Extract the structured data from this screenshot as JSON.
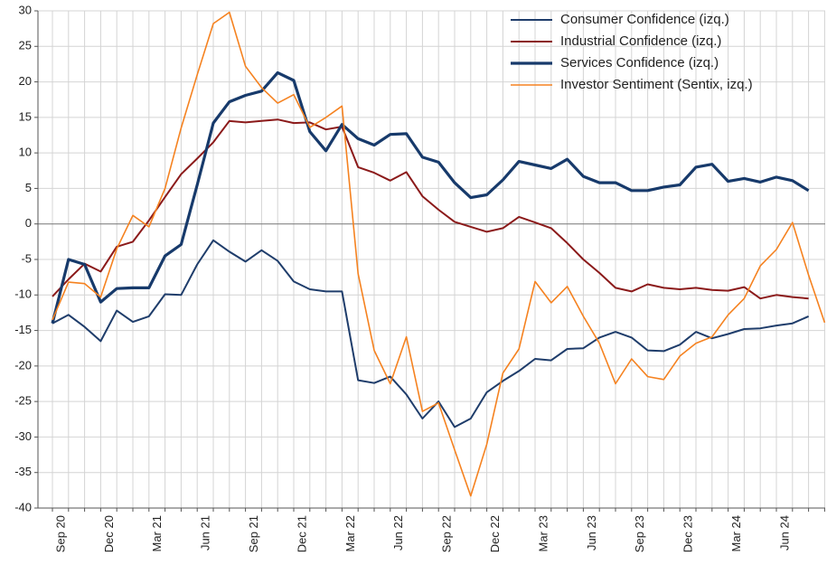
{
  "chart_data": {
    "type": "line",
    "categories": [
      "Sep 20",
      null,
      null,
      "Dec 20",
      null,
      null,
      "Mar 21",
      null,
      null,
      "Jun 21",
      null,
      null,
      "Sep 21",
      null,
      null,
      "Dec 21",
      null,
      null,
      "Mar 22",
      null,
      null,
      "Jun 22",
      null,
      null,
      "Sep 22",
      null,
      null,
      "Dec 22",
      null,
      null,
      "Mar 23",
      null,
      null,
      "Jun 23",
      null,
      null,
      "Sep 23",
      null,
      null,
      "Dec 23",
      null,
      null,
      "Mar 24",
      null,
      null,
      "Jun 24",
      null,
      null,
      null
    ],
    "series": [
      {
        "name": "Consumer Confidence (izq.)",
        "color": "#1f3d6b",
        "width": 2,
        "values": [
          -14,
          -12.8,
          -14.5,
          -16.5,
          -12.2,
          -13.8,
          -13,
          -9.9,
          -10,
          -5.7,
          -2.3,
          -3.9,
          -5.3,
          -3.7,
          -5.2,
          -8.1,
          -9.2,
          -9.5,
          -9.5,
          -22,
          -22.4,
          -21.5,
          -24,
          -27.4,
          -25,
          -28.6,
          -27.4,
          -23.7,
          -22.1,
          -20.7,
          -19,
          -19.2,
          -17.6,
          -17.5,
          -16,
          -15.2,
          -16,
          -17.8,
          -17.9,
          -17,
          -15.2,
          -16.1,
          -15.5,
          -14.8,
          -14.7,
          -14.3,
          -14,
          -13,
          null
        ]
      },
      {
        "name": "Industrial Confidence (izq.)",
        "color": "#8b1a1a",
        "width": 2,
        "values": [
          -10.2,
          -7.8,
          -5.6,
          -6.7,
          -3.2,
          -2.5,
          0.5,
          3.8,
          7,
          9.2,
          11.5,
          14.5,
          14.3,
          14.5,
          14.7,
          14.2,
          14.3,
          13.3,
          13.7,
          8,
          7.2,
          6.1,
          7.3,
          3.9,
          2,
          0.3,
          -0.4,
          -1.1,
          -0.6,
          1,
          0.2,
          -0.6,
          -2.7,
          -5,
          -6.9,
          -9,
          -9.5,
          -8.5,
          -9,
          -9.2,
          -9,
          -9.3,
          -9.4,
          -8.9,
          -10.5,
          -10,
          -10.3,
          -10.5,
          null
        ]
      },
      {
        "name": "Services Confidence (izq.)",
        "color": "#173a6b",
        "width": 3.2,
        "values": [
          -14,
          -5,
          -5.7,
          -11,
          -9.1,
          -9,
          -9,
          -4.5,
          -2.9,
          5.5,
          14.2,
          17.2,
          18.1,
          18.7,
          21.3,
          20.2,
          13,
          10.3,
          14,
          12,
          11.1,
          12.6,
          12.7,
          9.4,
          8.7,
          5.8,
          3.7,
          4.1,
          6.2,
          8.8,
          8.3,
          7.8,
          9.1,
          6.7,
          5.8,
          5.8,
          4.7,
          4.7,
          5.2,
          5.5,
          8,
          8.4,
          6,
          6.4,
          5.9,
          6.6,
          6.1,
          4.7,
          null
        ]
      },
      {
        "name": "Investor Sentiment (Sentix, izq.)",
        "color": "#f58220",
        "width": 1.6,
        "values": [
          -13.5,
          -8.2,
          -8.4,
          -10.3,
          -3.5,
          1.2,
          -0.4,
          5,
          13.5,
          21,
          28.2,
          29.8,
          22.2,
          19.2,
          17,
          18.2,
          13.6,
          15,
          16.6,
          -7,
          -17.8,
          -22.5,
          -15.9,
          -26.4,
          -25.2,
          -31.8,
          -38.3,
          -31,
          -21,
          -17.6,
          -8.1,
          -11.1,
          -8.8,
          -13,
          -16.8,
          -22.5,
          -19,
          -21.5,
          -21.9,
          -18.6,
          -16.8,
          -15.9,
          -12.8,
          -10.5,
          -5.9,
          -3.6,
          0.2,
          -7.2,
          -13.9
        ]
      }
    ],
    "ylim": [
      -40,
      30
    ],
    "yticks": [
      -40,
      -35,
      -30,
      -25,
      -20,
      -15,
      -10,
      -5,
      0,
      5,
      10,
      15,
      20,
      25,
      30
    ],
    "grid": true,
    "legend": "upper right"
  }
}
